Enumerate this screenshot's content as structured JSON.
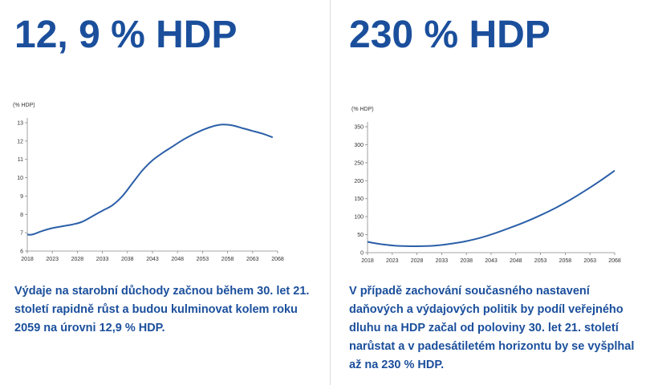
{
  "left": {
    "headline": "12, 9 % HDP",
    "caption": "Výdaje na starobní důchody začnou během 30. let 21. století rapidně růst a budou kulminovat kolem roku 2059 na úrovni 12,9 % HDP."
  },
  "right": {
    "headline": "230 % HDP",
    "caption": "V případě zachování současného nastavení daňových a výdajových politik by podíl veřejného dluhu na HDP začal od poloviny 30. let 21. století narůstat a v padesátiletém horizontu by se vyšplhal až na 230 % HDP."
  },
  "colors": {
    "accent": "#1b4f9c",
    "line": "#2b5fa8",
    "axis": "#888888"
  },
  "chart_data": [
    {
      "type": "line",
      "ylabel": "(% HDP)",
      "xlim": [
        2018,
        2068
      ],
      "ylim": [
        6,
        13
      ],
      "x_ticks": [
        "2018",
        "2023",
        "2028",
        "2033",
        "2038",
        "2043",
        "2048",
        "2053",
        "2058",
        "2063",
        "2068"
      ],
      "y_ticks": [
        "6",
        "7",
        "8",
        "9",
        "10",
        "11",
        "12",
        "13"
      ],
      "series": [
        {
          "x": [
            2018,
            2019,
            2021,
            2023,
            2025,
            2027,
            2029,
            2031,
            2033,
            2035,
            2037,
            2039,
            2041,
            2043,
            2045,
            2047,
            2049,
            2051,
            2053,
            2055,
            2057,
            2059,
            2061,
            2063,
            2065,
            2067
          ],
          "values": [
            6.9,
            6.9,
            7.1,
            7.25,
            7.35,
            7.45,
            7.6,
            7.9,
            8.2,
            8.5,
            9.0,
            9.7,
            10.4,
            10.95,
            11.35,
            11.7,
            12.05,
            12.35,
            12.6,
            12.8,
            12.9,
            12.85,
            12.7,
            12.55,
            12.4,
            12.2
          ]
        }
      ]
    },
    {
      "type": "line",
      "ylabel": "(% HDP)",
      "xlim": [
        2018,
        2068
      ],
      "ylim": [
        0,
        350
      ],
      "x_ticks": [
        "2018",
        "2023",
        "2028",
        "2033",
        "2038",
        "2043",
        "2048",
        "2053",
        "2058",
        "2063",
        "2068"
      ],
      "y_ticks": [
        "0",
        "50",
        "100",
        "150",
        "200",
        "250",
        "300",
        "350"
      ],
      "series": [
        {
          "x": [
            2018,
            2020,
            2023,
            2026,
            2029,
            2032,
            2035,
            2038,
            2041,
            2044,
            2047,
            2050,
            2053,
            2056,
            2059,
            2062,
            2065,
            2068
          ],
          "values": [
            30,
            25,
            20,
            18,
            18,
            20,
            25,
            32,
            42,
            55,
            70,
            86,
            104,
            124,
            147,
            172,
            199,
            228
          ]
        }
      ]
    }
  ]
}
